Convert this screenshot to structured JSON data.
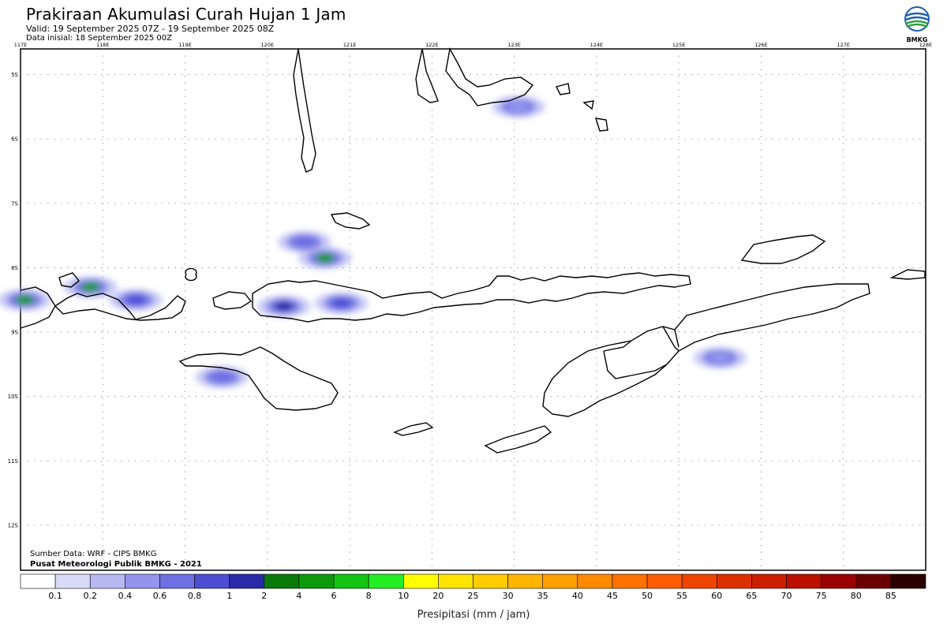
{
  "header": {
    "title": "Prakiraan Akumulasi Curah Hujan 1 Jam",
    "valid": "Valid: 19 September 2025 07Z - 19 September 2025 08Z",
    "initial": "Data inisial: 18 September 2025 00Z"
  },
  "logo": {
    "text": "BMKG",
    "colors": [
      "#1f5fb4",
      "#2ea043",
      "#ffffff"
    ]
  },
  "map": {
    "lon_labels": [
      "117E",
      "118E",
      "119E",
      "120E",
      "121E",
      "122E",
      "123E",
      "124E",
      "125E",
      "126E",
      "127E",
      "128E"
    ],
    "lat_labels": [
      "5S",
      "6S",
      "7S",
      "8S",
      "9S",
      "10S",
      "11S",
      "12S"
    ],
    "lon_range": [
      117,
      128
    ],
    "lat_range": [
      -4.6,
      -12.7
    ],
    "grid": "dotted"
  },
  "credits": {
    "source": "Sumber Data: WRF - CIPS BMKG",
    "org": "Pusat Meteorologi Publik BMKG - 2021"
  },
  "legend": {
    "title": "Presipitasi (mm / jam)",
    "labels": [
      "0.1",
      "0.2",
      "0.4",
      "0.6",
      "0.8",
      "1",
      "2",
      "4",
      "6",
      "8",
      "10",
      "20",
      "25",
      "30",
      "35",
      "40",
      "45",
      "50",
      "55",
      "60",
      "65",
      "70",
      "75",
      "80",
      "85"
    ],
    "colors": [
      "#ffffff",
      "#d9daf8",
      "#b7b8f2",
      "#9394ec",
      "#6e6fe3",
      "#4d4ed4",
      "#2a2aa8",
      "#0b7a0b",
      "#0c9a0c",
      "#14c414",
      "#22ee22",
      "#ffff00",
      "#ffe400",
      "#ffcc00",
      "#ffb400",
      "#ff9f00",
      "#ff8a00",
      "#ff7200",
      "#ff5c00",
      "#ee4400",
      "#dd3000",
      "#cc1f00",
      "#bb1000",
      "#990000",
      "#6b0000",
      "#2a0000"
    ]
  },
  "rain_areas": [
    {
      "name": "west-lombok-cell",
      "lon": 117.05,
      "lat": -8.5,
      "intensity": 4
    },
    {
      "name": "sumbawa-west-cell",
      "lon": 117.85,
      "lat": -8.3,
      "intensity": 4
    },
    {
      "name": "sumbawa-east-cell",
      "lon": 118.4,
      "lat": -8.5,
      "intensity": 1
    },
    {
      "name": "flores-sea-cell",
      "lon": 120.7,
      "lat": -7.85,
      "intensity": 4
    },
    {
      "name": "flores-sea-north-cell",
      "lon": 120.45,
      "lat": -7.6,
      "intensity": 0.8
    },
    {
      "name": "flores-west-cell",
      "lon": 120.2,
      "lat": -8.6,
      "intensity": 2
    },
    {
      "name": "flores-mid-cell",
      "lon": 120.9,
      "lat": -8.55,
      "intensity": 1
    },
    {
      "name": "sumba-cell",
      "lon": 119.45,
      "lat": -9.7,
      "intensity": 0.8
    },
    {
      "name": "sulawesi-south-cell",
      "lon": 123.05,
      "lat": -5.5,
      "intensity": 0.4
    },
    {
      "name": "timor-sea-cell",
      "lon": 125.5,
      "lat": -9.4,
      "intensity": 0.4
    }
  ]
}
